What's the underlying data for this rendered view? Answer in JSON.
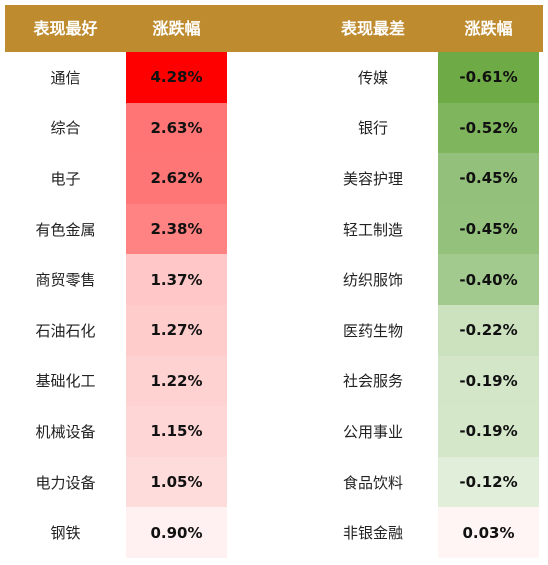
{
  "chart_data": {
    "type": "table",
    "columns": [
      "表现最好",
      "涨跌幅",
      "表现最差",
      "涨跌幅"
    ],
    "best": [
      {
        "name": "通信",
        "value": "4.28%",
        "color": "#ff0000"
      },
      {
        "name": "综合",
        "value": "2.63%",
        "color": "#ff7575"
      },
      {
        "name": "电子",
        "value": "2.62%",
        "color": "#ff7676"
      },
      {
        "name": "有色金属",
        "value": "2.38%",
        "color": "#ff8383"
      },
      {
        "name": "商贸零售",
        "value": "1.37%",
        "color": "#ffc7c7"
      },
      {
        "name": "石油石化",
        "value": "1.27%",
        "color": "#ffcccc"
      },
      {
        "name": "基础化工",
        "value": "1.22%",
        "color": "#ffd2d2"
      },
      {
        "name": "机械设备",
        "value": "1.15%",
        "color": "#ffd6d6"
      },
      {
        "name": "电力设备",
        "value": "1.05%",
        "color": "#ffdcdc"
      },
      {
        "name": "钢铁",
        "value": "0.90%",
        "color": "#fff1f1"
      }
    ],
    "worst": [
      {
        "name": "传媒",
        "value": "-0.61%",
        "color": "#6eaa46"
      },
      {
        "name": "银行",
        "value": "-0.52%",
        "color": "#7eb55d"
      },
      {
        "name": "美容护理",
        "value": "-0.45%",
        "color": "#93c17b"
      },
      {
        "name": "轻工制造",
        "value": "-0.45%",
        "color": "#94c27c"
      },
      {
        "name": "纺织服饰",
        "value": "-0.40%",
        "color": "#a2ca8e"
      },
      {
        "name": "医药生物",
        "value": "-0.22%",
        "color": "#cce2bf"
      },
      {
        "name": "社会服务",
        "value": "-0.19%",
        "color": "#d3e6c8"
      },
      {
        "name": "公用事业",
        "value": "-0.19%",
        "color": "#d4e7c9"
      },
      {
        "name": "食品饮料",
        "value": "-0.12%",
        "color": "#e1eed9"
      },
      {
        "name": "非银金融",
        "value": "0.03%",
        "color": "#fff5f5"
      }
    ],
    "header_color": "#be8b2f"
  }
}
